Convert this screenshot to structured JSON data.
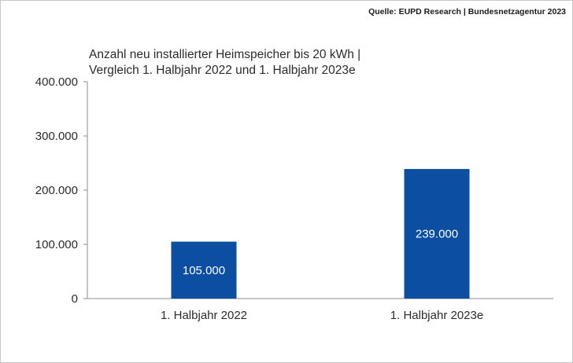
{
  "source": "Quelle: EUPD Research | Bundesnetzagentur 2023",
  "chart_data": {
    "type": "bar",
    "title_lines": [
      "Anzahl neu installierter Heimspeicher bis 20 kWh |",
      "Vergleich 1. Halbjahr 2022 und 1. Halbjahr 2023e"
    ],
    "categories": [
      "1. Halbjahr 2022",
      "1. Halbjahr 2023e"
    ],
    "values": [
      105000,
      239000
    ],
    "data_labels": [
      "105.000",
      "239.000"
    ],
    "ylim": [
      0,
      400000
    ],
    "yticks": [
      0,
      100000,
      200000,
      300000,
      400000
    ],
    "ytick_labels": [
      "0",
      "100.000",
      "200.000",
      "300.000",
      "400.000"
    ],
    "bar_color": "#0b4ea2",
    "grid": false,
    "legend": "none"
  }
}
